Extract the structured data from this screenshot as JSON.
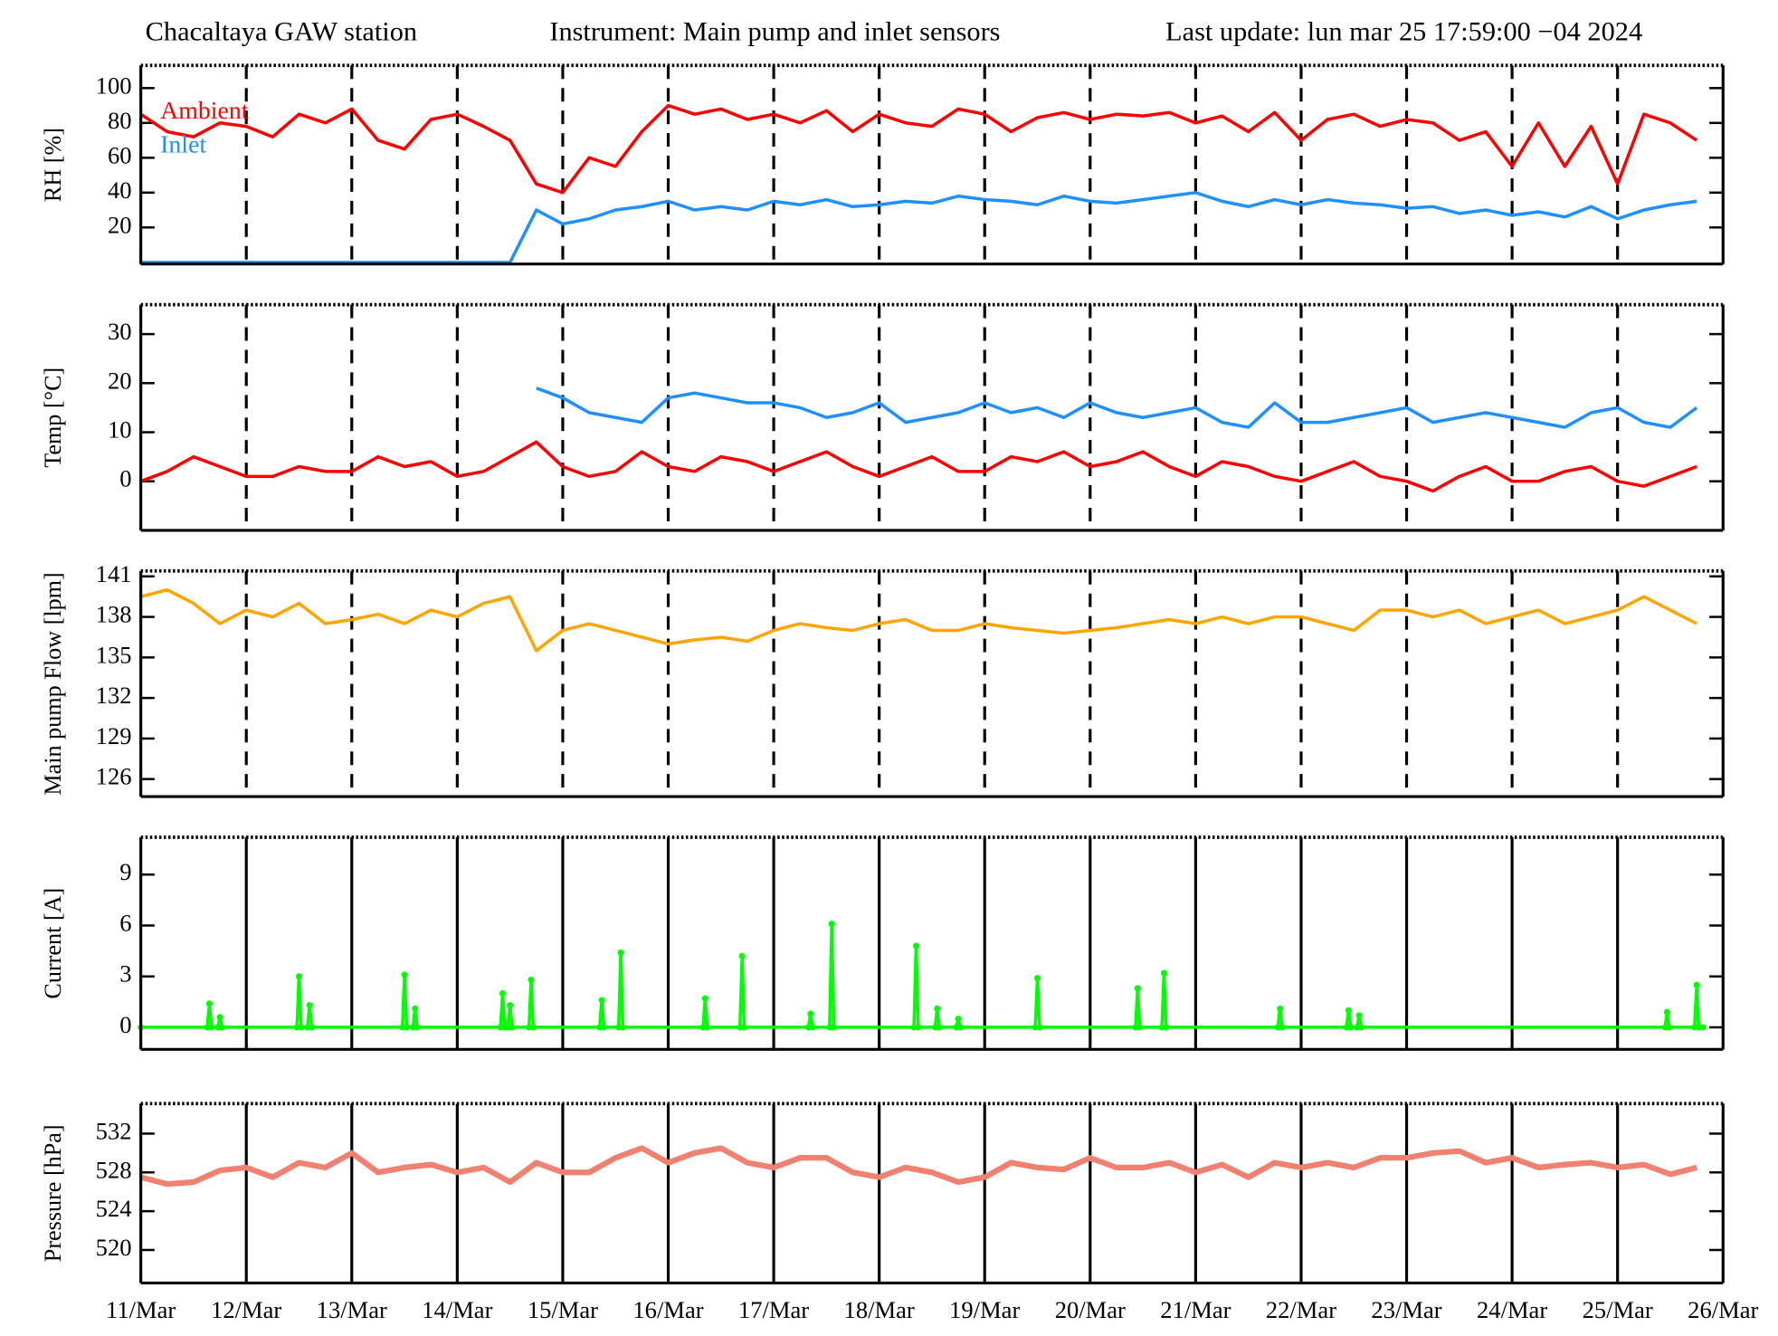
{
  "header": {
    "station": "Chacaltaya GAW station",
    "instrument": "Instrument: Main pump and inlet sensors",
    "last_update": "Last update: lun mar 25 17:59:00 −04 2024"
  },
  "chart_data": [
    {
      "type": "line",
      "ylabel": "RH [%]",
      "grid": "dashed",
      "legend": "top-left",
      "xlim": [
        11,
        26
      ],
      "xticks": [
        11,
        12,
        13,
        14,
        15,
        16,
        17,
        18,
        19,
        20,
        21,
        22,
        23,
        24,
        25,
        26
      ],
      "ylim": [
        -1,
        113
      ],
      "yticks": [
        20,
        40,
        60,
        80,
        100
      ],
      "x": [
        11,
        11.25,
        11.5,
        11.75,
        12,
        12.25,
        12.5,
        12.75,
        13,
        13.25,
        13.5,
        13.75,
        14,
        14.25,
        14.5,
        14.75,
        15,
        15.25,
        15.5,
        15.75,
        16,
        16.25,
        16.5,
        16.75,
        17,
        17.25,
        17.5,
        17.75,
        18,
        18.25,
        18.5,
        18.75,
        19,
        19.25,
        19.5,
        19.75,
        20,
        20.25,
        20.5,
        20.75,
        21,
        21.25,
        21.5,
        21.75,
        22,
        22.25,
        22.5,
        22.75,
        23,
        23.25,
        23.5,
        23.75,
        24,
        24.25,
        24.5,
        24.75,
        25,
        25.25,
        25.5,
        25.75
      ],
      "series": [
        {
          "name": "Ambient",
          "color": "#ff0000",
          "values": [
            85,
            75,
            72,
            80,
            78,
            72,
            85,
            80,
            88,
            70,
            65,
            82,
            85,
            78,
            70,
            45,
            40,
            60,
            55,
            75,
            90,
            85,
            88,
            82,
            85,
            80,
            87,
            75,
            85,
            80,
            78,
            88,
            85,
            75,
            83,
            86,
            82,
            85,
            84,
            86,
            80,
            84,
            75,
            86,
            70,
            82,
            85,
            78,
            82,
            80,
            70,
            75,
            55,
            80,
            55,
            78,
            45,
            85,
            80,
            70
          ]
        },
        {
          "name": "Inlet",
          "color": "#1e90ff",
          "values": [
            0,
            0,
            0,
            0,
            0,
            0,
            0,
            0,
            0,
            0,
            0,
            0,
            0,
            0,
            0,
            30,
            22,
            25,
            30,
            32,
            35,
            30,
            32,
            30,
            35,
            33,
            36,
            32,
            33,
            35,
            34,
            38,
            36,
            35,
            33,
            38,
            35,
            34,
            36,
            38,
            40,
            35,
            32,
            36,
            33,
            36,
            34,
            33,
            31,
            32,
            28,
            30,
            27,
            29,
            26,
            32,
            25,
            30,
            33,
            35
          ]
        }
      ]
    },
    {
      "type": "line",
      "ylabel": "Temp [°C]",
      "grid": "dashed",
      "xlim": [
        11,
        26
      ],
      "xticks": [
        11,
        12,
        13,
        14,
        15,
        16,
        17,
        18,
        19,
        20,
        21,
        22,
        23,
        24,
        25,
        26
      ],
      "ylim": [
        -10,
        36
      ],
      "yticks": [
        0,
        10,
        20,
        30
      ],
      "x": [
        11,
        11.25,
        11.5,
        11.75,
        12,
        12.25,
        12.5,
        12.75,
        13,
        13.25,
        13.5,
        13.75,
        14,
        14.25,
        14.5,
        14.75,
        15,
        15.25,
        15.5,
        15.75,
        16,
        16.25,
        16.5,
        16.75,
        17,
        17.25,
        17.5,
        17.75,
        18,
        18.25,
        18.5,
        18.75,
        19,
        19.25,
        19.5,
        19.75,
        20,
        20.25,
        20.5,
        20.75,
        21,
        21.25,
        21.5,
        21.75,
        22,
        22.25,
        22.5,
        22.75,
        23,
        23.25,
        23.5,
        23.75,
        24,
        24.25,
        24.5,
        24.75,
        25,
        25.25,
        25.5,
        25.75
      ],
      "series": [
        {
          "color": "#1e90ff",
          "values": [
            null,
            null,
            null,
            null,
            null,
            null,
            null,
            null,
            null,
            null,
            null,
            null,
            null,
            null,
            null,
            19,
            17,
            14,
            13,
            12,
            17,
            18,
            17,
            16,
            16,
            15,
            13,
            14,
            16,
            12,
            13,
            14,
            16,
            14,
            15,
            13,
            16,
            14,
            13,
            14,
            15,
            12,
            11,
            16,
            12,
            12,
            13,
            14,
            15,
            12,
            13,
            14,
            13,
            12,
            11,
            14,
            15,
            12,
            11,
            15
          ]
        },
        {
          "color": "#ff0000",
          "values": [
            0,
            2,
            5,
            3,
            1,
            1,
            3,
            2,
            2,
            5,
            3,
            4,
            1,
            2,
            5,
            8,
            3,
            1,
            2,
            6,
            3,
            2,
            5,
            4,
            2,
            4,
            6,
            3,
            1,
            3,
            5,
            2,
            2,
            5,
            4,
            6,
            3,
            4,
            6,
            3,
            1,
            4,
            3,
            1,
            0,
            2,
            4,
            1,
            0,
            -2,
            1,
            3,
            0,
            0,
            2,
            3,
            0,
            -1,
            1,
            3
          ]
        }
      ]
    },
    {
      "type": "line",
      "ylabel": "Main pump Flow [lpm]",
      "grid": "dashed",
      "xlim": [
        11,
        26
      ],
      "xticks": [
        11,
        12,
        13,
        14,
        15,
        16,
        17,
        18,
        19,
        20,
        21,
        22,
        23,
        24,
        25,
        26
      ],
      "ylim": [
        124.7,
        141.4
      ],
      "yticks": [
        126,
        129,
        132,
        135,
        138,
        141
      ],
      "x": [
        11,
        11.25,
        11.5,
        11.75,
        12,
        12.25,
        12.5,
        12.75,
        13,
        13.25,
        13.5,
        13.75,
        14,
        14.25,
        14.5,
        14.75,
        15,
        15.25,
        15.5,
        15.75,
        16,
        16.25,
        16.5,
        16.75,
        17,
        17.25,
        17.5,
        17.75,
        18,
        18.25,
        18.5,
        18.75,
        19,
        19.25,
        19.5,
        19.75,
        20,
        20.25,
        20.5,
        20.75,
        21,
        21.25,
        21.5,
        21.75,
        22,
        22.25,
        22.5,
        22.75,
        23,
        23.25,
        23.5,
        23.75,
        24,
        24.25,
        24.5,
        24.75,
        25,
        25.25,
        25.5,
        25.75
      ],
      "series": [
        {
          "color": "#ffa500",
          "values": [
            139.5,
            140,
            139,
            137.5,
            138.5,
            138,
            139,
            137.5,
            137.8,
            138.2,
            137.5,
            138.5,
            138,
            139,
            139.5,
            135.5,
            137,
            137.5,
            137,
            136.5,
            136,
            136.3,
            136.5,
            136.2,
            137,
            137.5,
            137.2,
            137,
            137.5,
            137.8,
            137,
            137,
            137.5,
            137.2,
            137,
            136.8,
            137,
            137.2,
            137.5,
            137.8,
            137.5,
            138,
            137.5,
            138,
            138,
            137.5,
            137,
            138.5,
            138.5,
            138,
            138.5,
            137.5,
            138,
            138.5,
            137.5,
            138,
            138.5,
            139.5,
            138.5,
            137.5
          ]
        }
      ]
    },
    {
      "type": "line",
      "ylabel": "Current  [A]",
      "grid": "solid",
      "markers": true,
      "xlim": [
        11,
        26
      ],
      "xticks": [
        11,
        12,
        13,
        14,
        15,
        16,
        17,
        18,
        19,
        20,
        21,
        22,
        23,
        24,
        25,
        26
      ],
      "ylim": [
        -1.3,
        11.2
      ],
      "yticks": [
        0,
        3,
        6,
        9
      ],
      "x": [
        11,
        11.63,
        11.65,
        11.67,
        11.73,
        11.75,
        11.77,
        12.48,
        12.5,
        12.52,
        12.58,
        12.6,
        12.62,
        13.48,
        13.5,
        13.52,
        13.58,
        13.6,
        13.62,
        14.41,
        14.43,
        14.45,
        14.48,
        14.5,
        14.52,
        14.68,
        14.7,
        14.72,
        15.35,
        15.37,
        15.39,
        15.53,
        15.55,
        15.57,
        16.33,
        16.35,
        16.37,
        16.68,
        16.7,
        16.72,
        17.33,
        17.35,
        17.37,
        17.53,
        17.55,
        17.57,
        18.33,
        18.35,
        18.37,
        18.53,
        18.55,
        18.57,
        18.73,
        18.75,
        18.77,
        19.48,
        19.5,
        19.52,
        20.43,
        20.45,
        20.47,
        20.68,
        20.7,
        20.72,
        21.78,
        21.8,
        21.82,
        22.43,
        22.45,
        22.47,
        22.53,
        22.55,
        22.57,
        25.45,
        25.47,
        25.49,
        25.73,
        25.75,
        25.77,
        25.81
      ],
      "series": [
        {
          "color": "#00ff00",
          "values": [
            0,
            0,
            1.4,
            0,
            0,
            0.6,
            0,
            0,
            3,
            0,
            0,
            1.3,
            0,
            0,
            3.1,
            0,
            0,
            1.1,
            0,
            0,
            2,
            0,
            0,
            1.3,
            0,
            0,
            2.8,
            0,
            0,
            1.6,
            0,
            0,
            4.4,
            0,
            0,
            1.7,
            0,
            0,
            4.2,
            0,
            0,
            0.8,
            0,
            0,
            6.1,
            0,
            0,
            4.8,
            0,
            0,
            1.1,
            0,
            0,
            0.5,
            0,
            0,
            2.9,
            0,
            0,
            2.3,
            0,
            0,
            3.2,
            0,
            0,
            1.1,
            0,
            0,
            1,
            0,
            0,
            0.7,
            0,
            0,
            0.9,
            0,
            0,
            2.5,
            0,
            0
          ]
        }
      ]
    },
    {
      "type": "line",
      "ylabel": "Pressure  [hPa]",
      "grid": "solid",
      "xlim": [
        11,
        26
      ],
      "xticks": [
        {
          "value": 11,
          "label": "11/Mar"
        },
        {
          "value": 12,
          "label": "12/Mar"
        },
        {
          "value": 13,
          "label": "13/Mar"
        },
        {
          "value": 14,
          "label": "14/Mar"
        },
        {
          "value": 15,
          "label": "15/Mar"
        },
        {
          "value": 16,
          "label": "16/Mar"
        },
        {
          "value": 17,
          "label": "17/Mar"
        },
        {
          "value": 18,
          "label": "18/Mar"
        },
        {
          "value": 19,
          "label": "19/Mar"
        },
        {
          "value": 20,
          "label": "20/Mar"
        },
        {
          "value": 21,
          "label": "21/Mar"
        },
        {
          "value": 22,
          "label": "22/Mar"
        },
        {
          "value": 23,
          "label": "23/Mar"
        },
        {
          "value": 24,
          "label": "24/Mar"
        },
        {
          "value": 25,
          "label": "25/Mar"
        },
        {
          "value": 26,
          "label": "26/Mar"
        }
      ],
      "ylim": [
        516.6,
        535.1
      ],
      "yticks": [
        520,
        524,
        528,
        532
      ],
      "x": [
        11,
        11.25,
        11.5,
        11.75,
        12,
        12.25,
        12.5,
        12.75,
        13,
        13.25,
        13.5,
        13.75,
        14,
        14.25,
        14.5,
        14.75,
        15,
        15.25,
        15.5,
        15.75,
        16,
        16.25,
        16.5,
        16.75,
        17,
        17.25,
        17.5,
        17.75,
        18,
        18.25,
        18.5,
        18.75,
        19,
        19.25,
        19.5,
        19.75,
        20,
        20.25,
        20.5,
        20.75,
        21,
        21.25,
        21.5,
        21.75,
        22,
        22.25,
        22.5,
        22.75,
        23,
        23.25,
        23.5,
        23.75,
        24,
        24.25,
        24.5,
        24.75,
        25,
        25.25,
        25.5,
        25.75
      ],
      "series": [
        {
          "color": "#f08070",
          "values": [
            527.5,
            526.8,
            527,
            528.2,
            528.5,
            527.5,
            529,
            528.5,
            530,
            528,
            528.5,
            528.8,
            528,
            528.5,
            527,
            529,
            528,
            528,
            529.5,
            530.5,
            529,
            530,
            530.5,
            529,
            528.5,
            529.5,
            529.5,
            528,
            527.5,
            528.5,
            528,
            527,
            527.5,
            529,
            528.5,
            528.3,
            529.5,
            528.5,
            528.5,
            529,
            528,
            528.8,
            527.5,
            529,
            528.5,
            529,
            528.5,
            529.5,
            529.5,
            530,
            530.2,
            529,
            529.5,
            528.5,
            528.8,
            529,
            528.5,
            528.8,
            527.8,
            528.5
          ]
        }
      ]
    }
  ]
}
